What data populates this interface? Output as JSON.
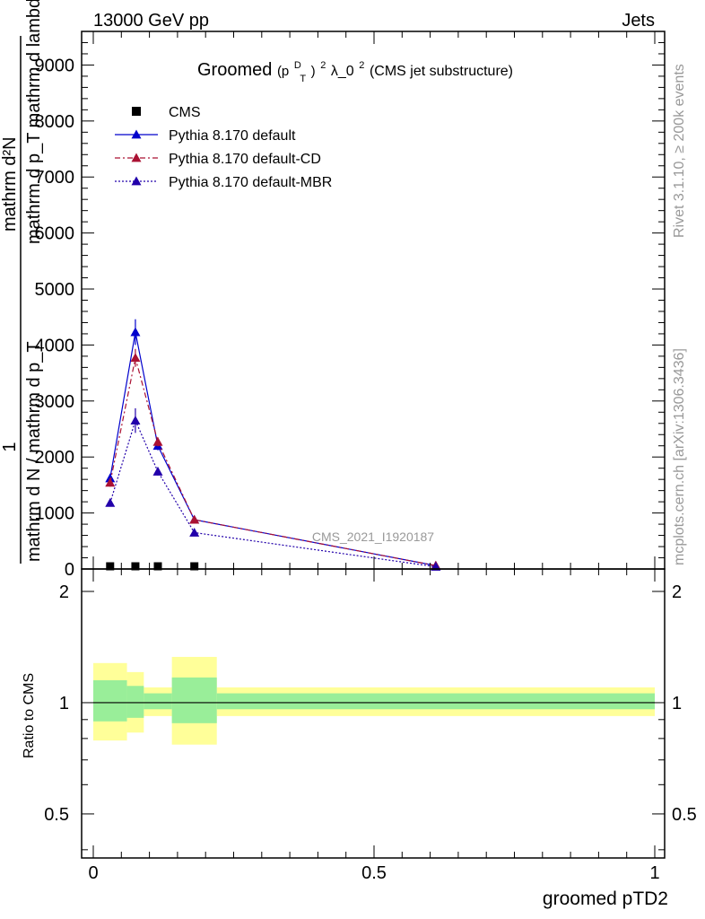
{
  "header": {
    "energy_label": "13000 GeV pp",
    "category_label": "Jets"
  },
  "side_labels": {
    "rivet": "Rivet 3.1.10, ≥ 200k events",
    "mcplots": "mcplots.cern.ch [arXiv:1306.3436]"
  },
  "chart_data": {
    "type": "line",
    "title_main": "Groomed",
    "title_sym_pre": "(p",
    "title_sup_d": "D",
    "title_sub_t": "T",
    "title_sym_close": ")",
    "title_sup_2": "2",
    "title_lambda": " λ_0",
    "title_sup_2b": "2",
    "title_tail": " (CMS jet substructure)",
    "ylabel_numerator": "1",
    "ylabel_denominator": "mathrm d N / mathrm d p_T",
    "ylabel_numerator2": "mathrm d²N",
    "ylabel_denominator2": "mathrm d p_T mathrm d lambda",
    "xlabel": "groomed pTD2",
    "ratio_ylabel": "Ratio to CMS",
    "watermark": "CMS_2021_I1920187",
    "xlim": [
      0,
      1
    ],
    "ylim": [
      0,
      9600
    ],
    "ratio_ylim": [
      0.38,
      2.3
    ],
    "x_ticks": [
      {
        "v": 0,
        "label": "0"
      },
      {
        "v": 0.5,
        "label": "0.5"
      },
      {
        "v": 1,
        "label": "1"
      }
    ],
    "y_ticks": [
      {
        "v": 0,
        "label": "0"
      },
      {
        "v": 1000,
        "label": "1000"
      },
      {
        "v": 2000,
        "label": "2000"
      },
      {
        "v": 3000,
        "label": "3000"
      },
      {
        "v": 4000,
        "label": "4000"
      },
      {
        "v": 5000,
        "label": "5000"
      },
      {
        "v": 6000,
        "label": "6000"
      },
      {
        "v": 7000,
        "label": "7000"
      },
      {
        "v": 8000,
        "label": "8000"
      },
      {
        "v": 9000,
        "label": "9000"
      }
    ],
    "ratio_ticks": [
      {
        "v": 0.5,
        "label": "0.5"
      },
      {
        "v": 1,
        "label": "1"
      },
      {
        "v": 2,
        "label": "2"
      }
    ],
    "bin_edges": [
      0,
      0.06,
      0.09,
      0.14,
      0.22,
      1.0
    ],
    "x": [
      0.03,
      0.075,
      0.115,
      0.18,
      0.61
    ],
    "series": [
      {
        "name": "CMS",
        "kind": "data",
        "color": "#000000",
        "values": [
          8,
          8,
          8,
          8,
          0
        ]
      },
      {
        "name": "Pythia 8.170 default",
        "kind": "mc",
        "color": "#0000cc",
        "dash": "",
        "values": [
          1620,
          4230,
          2200,
          880,
          60
        ],
        "errors": [
          80,
          230,
          80,
          30,
          5
        ]
      },
      {
        "name": "Pythia 8.170 default-CD",
        "kind": "mc",
        "color": "#aa1133",
        "dash": "6,3,2,3",
        "values": [
          1540,
          3770,
          2270,
          880,
          60
        ],
        "errors": [
          70,
          160,
          80,
          30,
          5
        ]
      },
      {
        "name": "Pythia 8.170 default-MBR",
        "kind": "mc",
        "color": "#2200aa",
        "dash": "2,2",
        "values": [
          1180,
          2650,
          1740,
          650,
          40
        ],
        "errors": [
          60,
          220,
          70,
          30,
          5
        ]
      }
    ],
    "ratio_bands": {
      "yellow_color": "#ffff99",
      "green_color": "#99ee99",
      "stat_sys": [
        [
          0.79,
          1.28
        ],
        [
          0.83,
          1.21
        ],
        [
          0.92,
          1.1
        ],
        [
          0.77,
          1.33
        ],
        [
          0.92,
          1.1
        ]
      ],
      "stat": [
        [
          0.89,
          1.15
        ],
        [
          0.91,
          1.11
        ],
        [
          0.96,
          1.06
        ],
        [
          0.88,
          1.17
        ],
        [
          0.96,
          1.06
        ]
      ]
    }
  }
}
